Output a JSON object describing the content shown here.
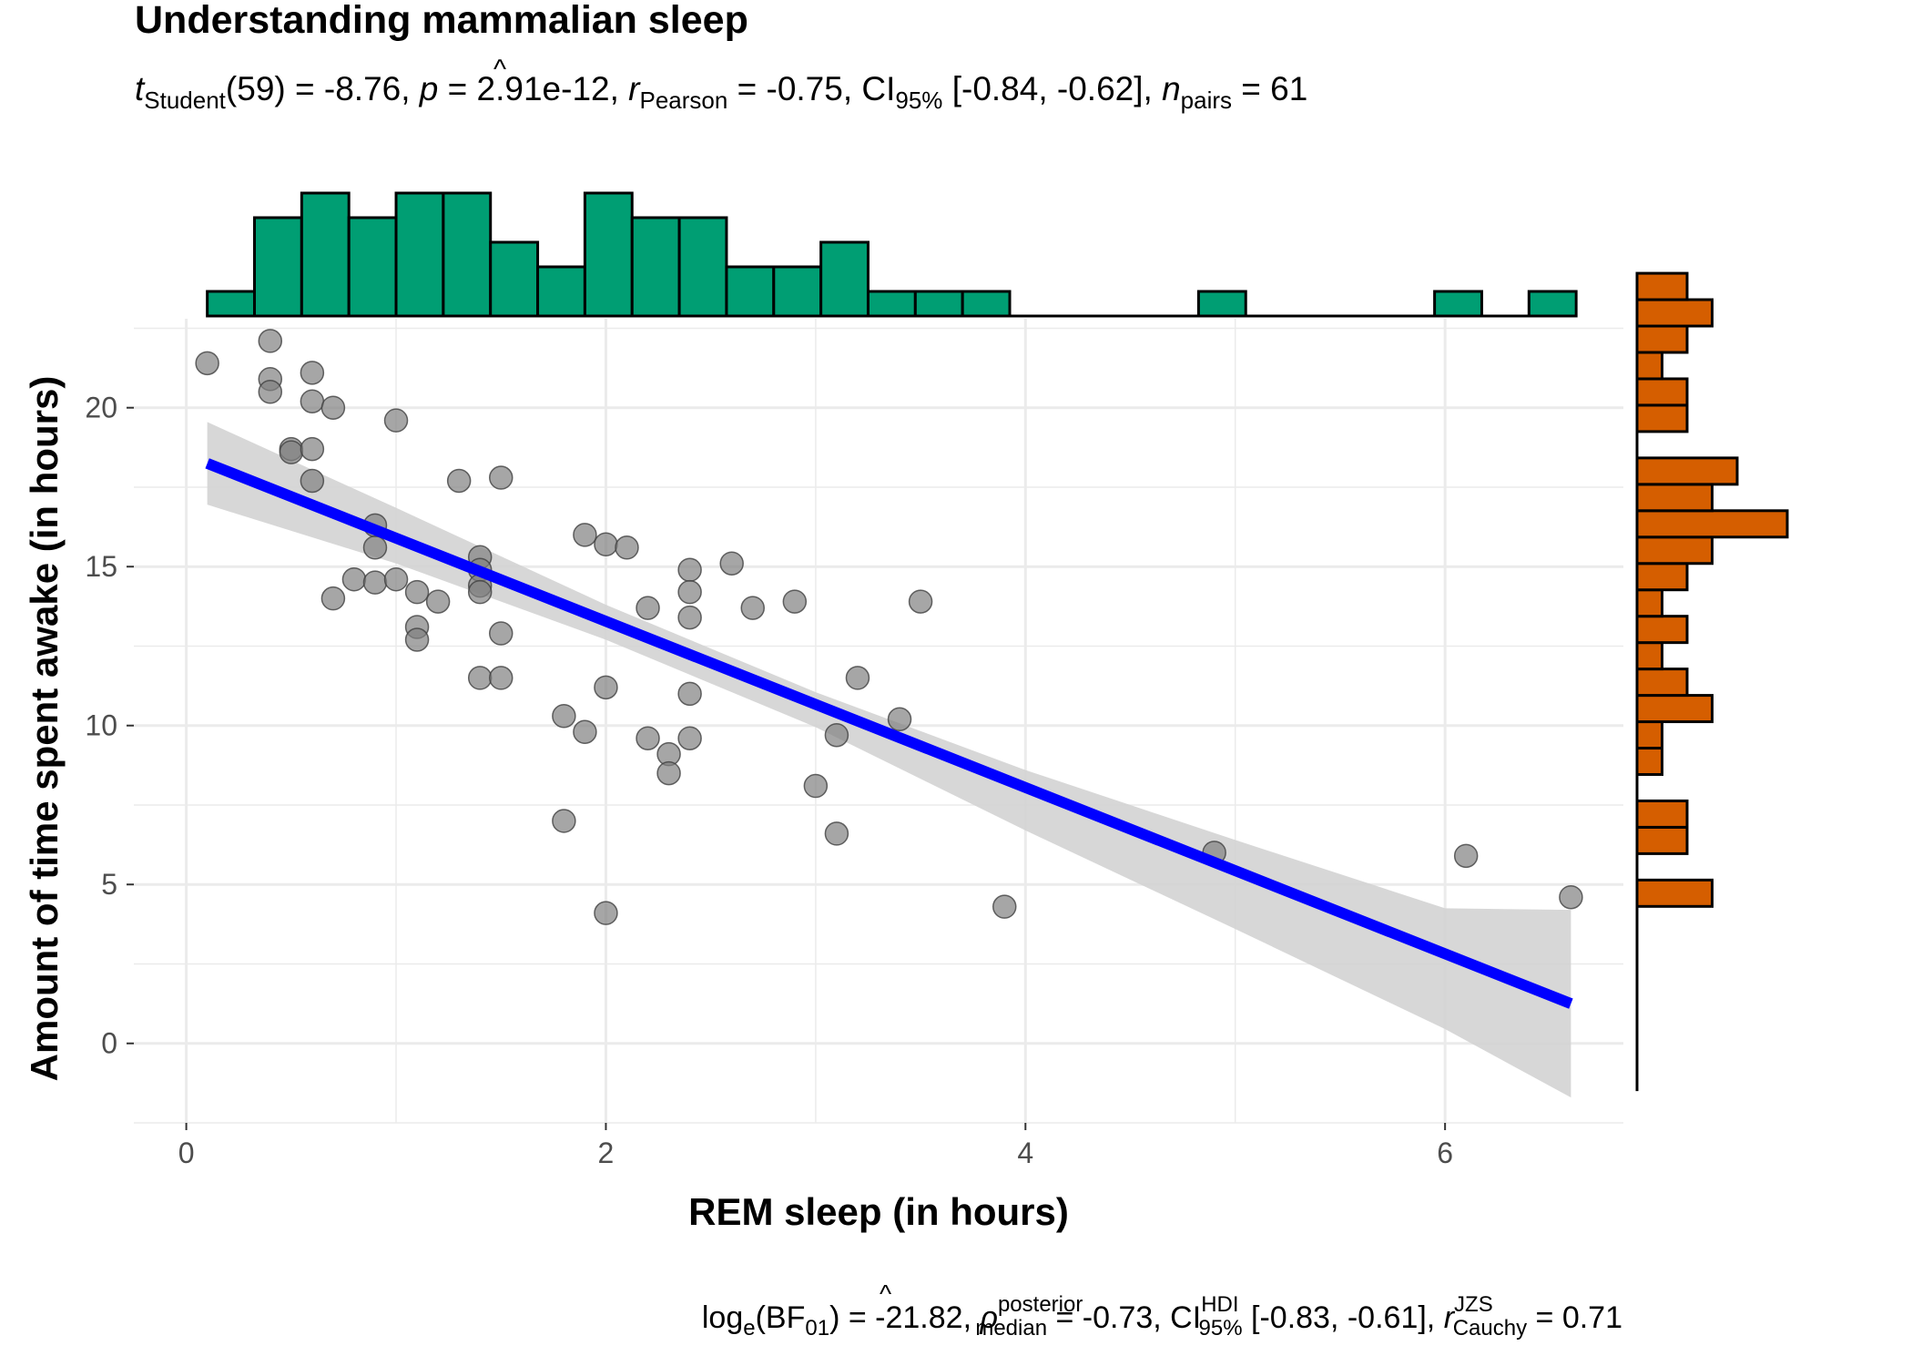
{
  "chart_data": {
    "type": "scatter",
    "title": "Understanding mammalian sleep",
    "subtitle": {
      "t_symbol": "t",
      "t_sub": "Student",
      "t_rest": "(59) = -8.76, ",
      "p_symbol": "p",
      "p_rest": " = 2.91e-12, ",
      "r_symbol": "r",
      "r_sub": "Pearson",
      "r_rest": " = -0.75, CI",
      "ci_sub": "95%",
      "ci_rest": " [-0.84, -0.62], ",
      "n_symbol": "n",
      "n_sub": "pairs",
      "n_rest": " = 61"
    },
    "caption": {
      "log_text": "log",
      "log_sub": "e",
      "bf_text": "(BF",
      "bf_sub": "01",
      "bf_rest": ") = -21.82, ",
      "rho_symbol": "ρ",
      "rho_sup": "posterior",
      "rho_sub": "median",
      "rho_rest": " = -0.73, CI",
      "ci_sup": "HDI",
      "ci_sub": "95%",
      "ci_rest": " [-0.83, -0.61], ",
      "rc_symbol": "r",
      "rc_sup": "JZS",
      "rc_sub": "Cauchy",
      "rc_rest": " = 0.71"
    },
    "xlabel": "REM sleep (in hours)",
    "ylabel": "Amount of time spent awake (in hours)",
    "xlim": [
      -0.25,
      6.85
    ],
    "ylim": [
      -2.5,
      22.8
    ],
    "x_ticks": [
      0,
      2,
      4,
      6
    ],
    "y_ticks": [
      0,
      5,
      10,
      15,
      20
    ],
    "grid": true,
    "points": [
      [
        0.1,
        21.4
      ],
      [
        0.4,
        22.1
      ],
      [
        0.4,
        20.9
      ],
      [
        0.4,
        20.5
      ],
      [
        0.6,
        21.1
      ],
      [
        0.6,
        20.2
      ],
      [
        0.7,
        20.0
      ],
      [
        1.0,
        19.6
      ],
      [
        0.5,
        18.7
      ],
      [
        0.5,
        18.6
      ],
      [
        0.6,
        18.7
      ],
      [
        0.6,
        17.7
      ],
      [
        1.3,
        17.7
      ],
      [
        1.5,
        17.8
      ],
      [
        0.9,
        16.3
      ],
      [
        0.9,
        15.6
      ],
      [
        1.9,
        16.0
      ],
      [
        2.0,
        15.7
      ],
      [
        2.1,
        15.6
      ],
      [
        1.4,
        15.3
      ],
      [
        1.4,
        14.9
      ],
      [
        0.8,
        14.6
      ],
      [
        0.9,
        14.5
      ],
      [
        1.0,
        14.6
      ],
      [
        1.4,
        14.4
      ],
      [
        1.4,
        14.2
      ],
      [
        1.1,
        14.2
      ],
      [
        0.7,
        14.0
      ],
      [
        1.2,
        13.9
      ],
      [
        2.4,
        14.9
      ],
      [
        2.6,
        15.1
      ],
      [
        2.4,
        14.2
      ],
      [
        2.2,
        13.7
      ],
      [
        2.7,
        13.7
      ],
      [
        2.9,
        13.9
      ],
      [
        3.5,
        13.9
      ],
      [
        2.4,
        13.4
      ],
      [
        1.1,
        13.1
      ],
      [
        1.5,
        12.9
      ],
      [
        1.1,
        12.7
      ],
      [
        1.4,
        11.5
      ],
      [
        1.5,
        11.5
      ],
      [
        2.0,
        11.2
      ],
      [
        2.4,
        11.0
      ],
      [
        3.2,
        11.5
      ],
      [
        1.8,
        10.3
      ],
      [
        1.9,
        9.8
      ],
      [
        3.4,
        10.2
      ],
      [
        2.2,
        9.6
      ],
      [
        2.4,
        9.6
      ],
      [
        3.1,
        9.7
      ],
      [
        2.3,
        9.1
      ],
      [
        2.3,
        8.5
      ],
      [
        3.0,
        8.1
      ],
      [
        1.8,
        7.0
      ],
      [
        3.1,
        6.6
      ],
      [
        4.9,
        6.0
      ],
      [
        6.1,
        5.9
      ],
      [
        6.6,
        4.6
      ],
      [
        3.9,
        4.3
      ],
      [
        2.0,
        4.1
      ]
    ],
    "regression": {
      "x": [
        0.1,
        6.6
      ],
      "y": [
        18.25,
        1.25
      ],
      "ci_band": [
        [
          0.1,
          16.95,
          19.55
        ],
        [
          1.0,
          15.1,
          16.85
        ],
        [
          2.0,
          12.7,
          13.8
        ],
        [
          3.0,
          9.95,
          11.05
        ],
        [
          4.0,
          6.7,
          8.6
        ],
        [
          5.0,
          3.6,
          6.4
        ],
        [
          6.0,
          0.45,
          4.25
        ],
        [
          6.6,
          -1.7,
          4.2
        ]
      ]
    },
    "x_marginal_histogram": {
      "breaks_start": 0.1,
      "bin_width": 0.225,
      "counts": [
        1,
        4,
        5,
        4,
        5,
        5,
        3,
        2,
        5,
        4,
        4,
        2,
        2,
        3,
        1,
        1,
        1,
        0,
        0,
        0,
        0,
        1,
        0,
        0,
        0,
        0,
        1,
        0,
        1
      ]
    },
    "y_marginal_histogram": {
      "breaks_start": -1.5,
      "bin_width": 0.83,
      "counts": [
        0,
        0,
        0,
        0,
        0,
        0,
        0,
        3,
        0,
        2,
        2,
        0,
        1,
        1,
        3,
        2,
        1,
        2,
        1,
        2,
        3,
        6,
        3,
        4,
        0,
        2,
        2,
        1,
        2,
        3,
        2
      ]
    },
    "colors": {
      "point_fill": "#808080",
      "regression_line": "#0000ff",
      "ci_band": "#d3d3d3",
      "x_hist_fill": "#009e73",
      "y_hist_fill": "#d55e00",
      "grid_line": "#ebebeb"
    }
  }
}
